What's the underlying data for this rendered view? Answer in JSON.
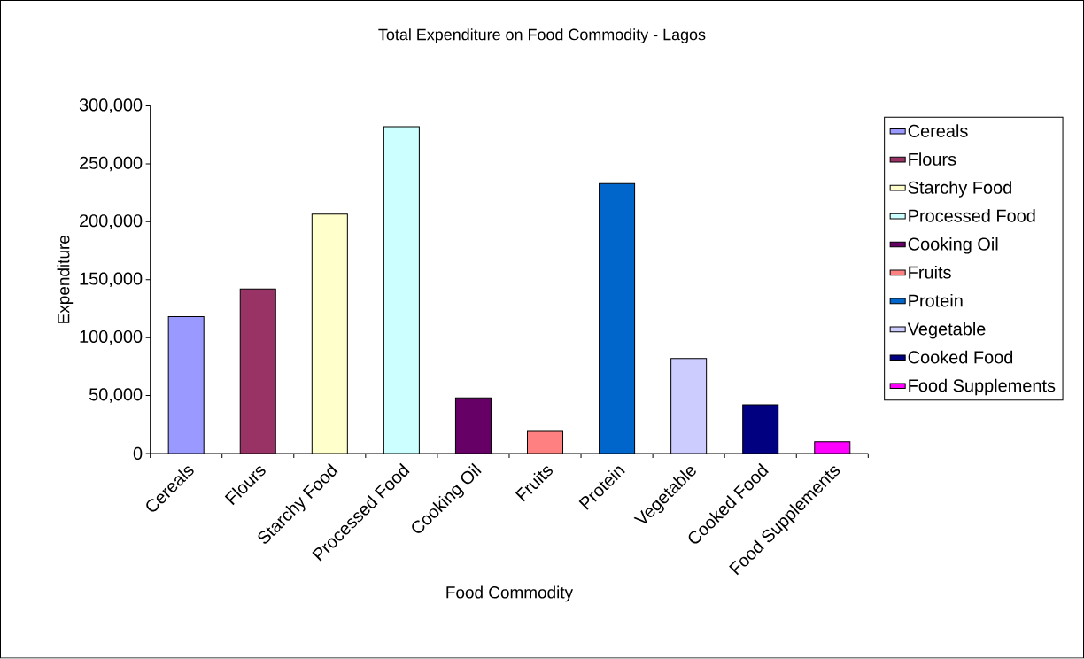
{
  "chart_data": {
    "type": "bar",
    "title": "Total Expenditure on Food Commodity - Lagos",
    "xlabel": "Food Commodity",
    "ylabel": "Expenditure",
    "categories": [
      "Cereals",
      "Flours",
      "Starchy Food",
      "Processed Food",
      "Cooking Oil",
      "Fruits",
      "Protein",
      "Vegetable",
      "Cooked Food",
      "Food Supplements"
    ],
    "series": [
      {
        "name": "Cereals",
        "color": "#9999ff",
        "values": [
          118000,
          null,
          null,
          null,
          null,
          null,
          null,
          null,
          null,
          null
        ]
      },
      {
        "name": "Flours",
        "color": "#993366",
        "values": [
          null,
          142000,
          null,
          null,
          null,
          null,
          null,
          null,
          null,
          null
        ]
      },
      {
        "name": "Starchy Food",
        "color": "#ffffcc",
        "values": [
          null,
          null,
          206500,
          null,
          null,
          null,
          null,
          null,
          null,
          null
        ]
      },
      {
        "name": "Processed Food",
        "color": "#ccffff",
        "values": [
          null,
          null,
          null,
          282000,
          null,
          null,
          null,
          null,
          null,
          null
        ]
      },
      {
        "name": "Cooking Oil",
        "color": "#660066",
        "values": [
          null,
          null,
          null,
          null,
          48000,
          null,
          null,
          null,
          null,
          null
        ]
      },
      {
        "name": "Fruits",
        "color": "#ff8080",
        "values": [
          null,
          null,
          null,
          null,
          null,
          19000,
          null,
          null,
          null,
          null
        ]
      },
      {
        "name": "Protein",
        "color": "#0066cc",
        "values": [
          null,
          null,
          null,
          null,
          null,
          null,
          233000,
          null,
          null,
          null
        ]
      },
      {
        "name": "Vegetable",
        "color": "#ccccff",
        "values": [
          null,
          null,
          null,
          null,
          null,
          null,
          null,
          82000,
          null,
          null
        ]
      },
      {
        "name": "Cooked Food",
        "color": "#000080",
        "values": [
          null,
          null,
          null,
          null,
          null,
          null,
          null,
          null,
          42000,
          null
        ]
      },
      {
        "name": "Food Supplements",
        "color": "#ff00ff",
        "values": [
          null,
          null,
          null,
          null,
          null,
          null,
          null,
          null,
          null,
          10000
        ]
      }
    ],
    "ylim": [
      0,
      300000
    ],
    "yticks": [
      0,
      {
        "value": 50000,
        "label": "50,000"
      },
      {
        "value": 100000,
        "label": "100,000"
      },
      {
        "value": 150000,
        "label": "150,000"
      },
      {
        "value": 200000,
        "label": "200,000"
      },
      {
        "value": 250000,
        "label": "250,000"
      },
      {
        "value": 300000,
        "label": "300,000"
      }
    ],
    "grid": false,
    "legend": "right"
  }
}
